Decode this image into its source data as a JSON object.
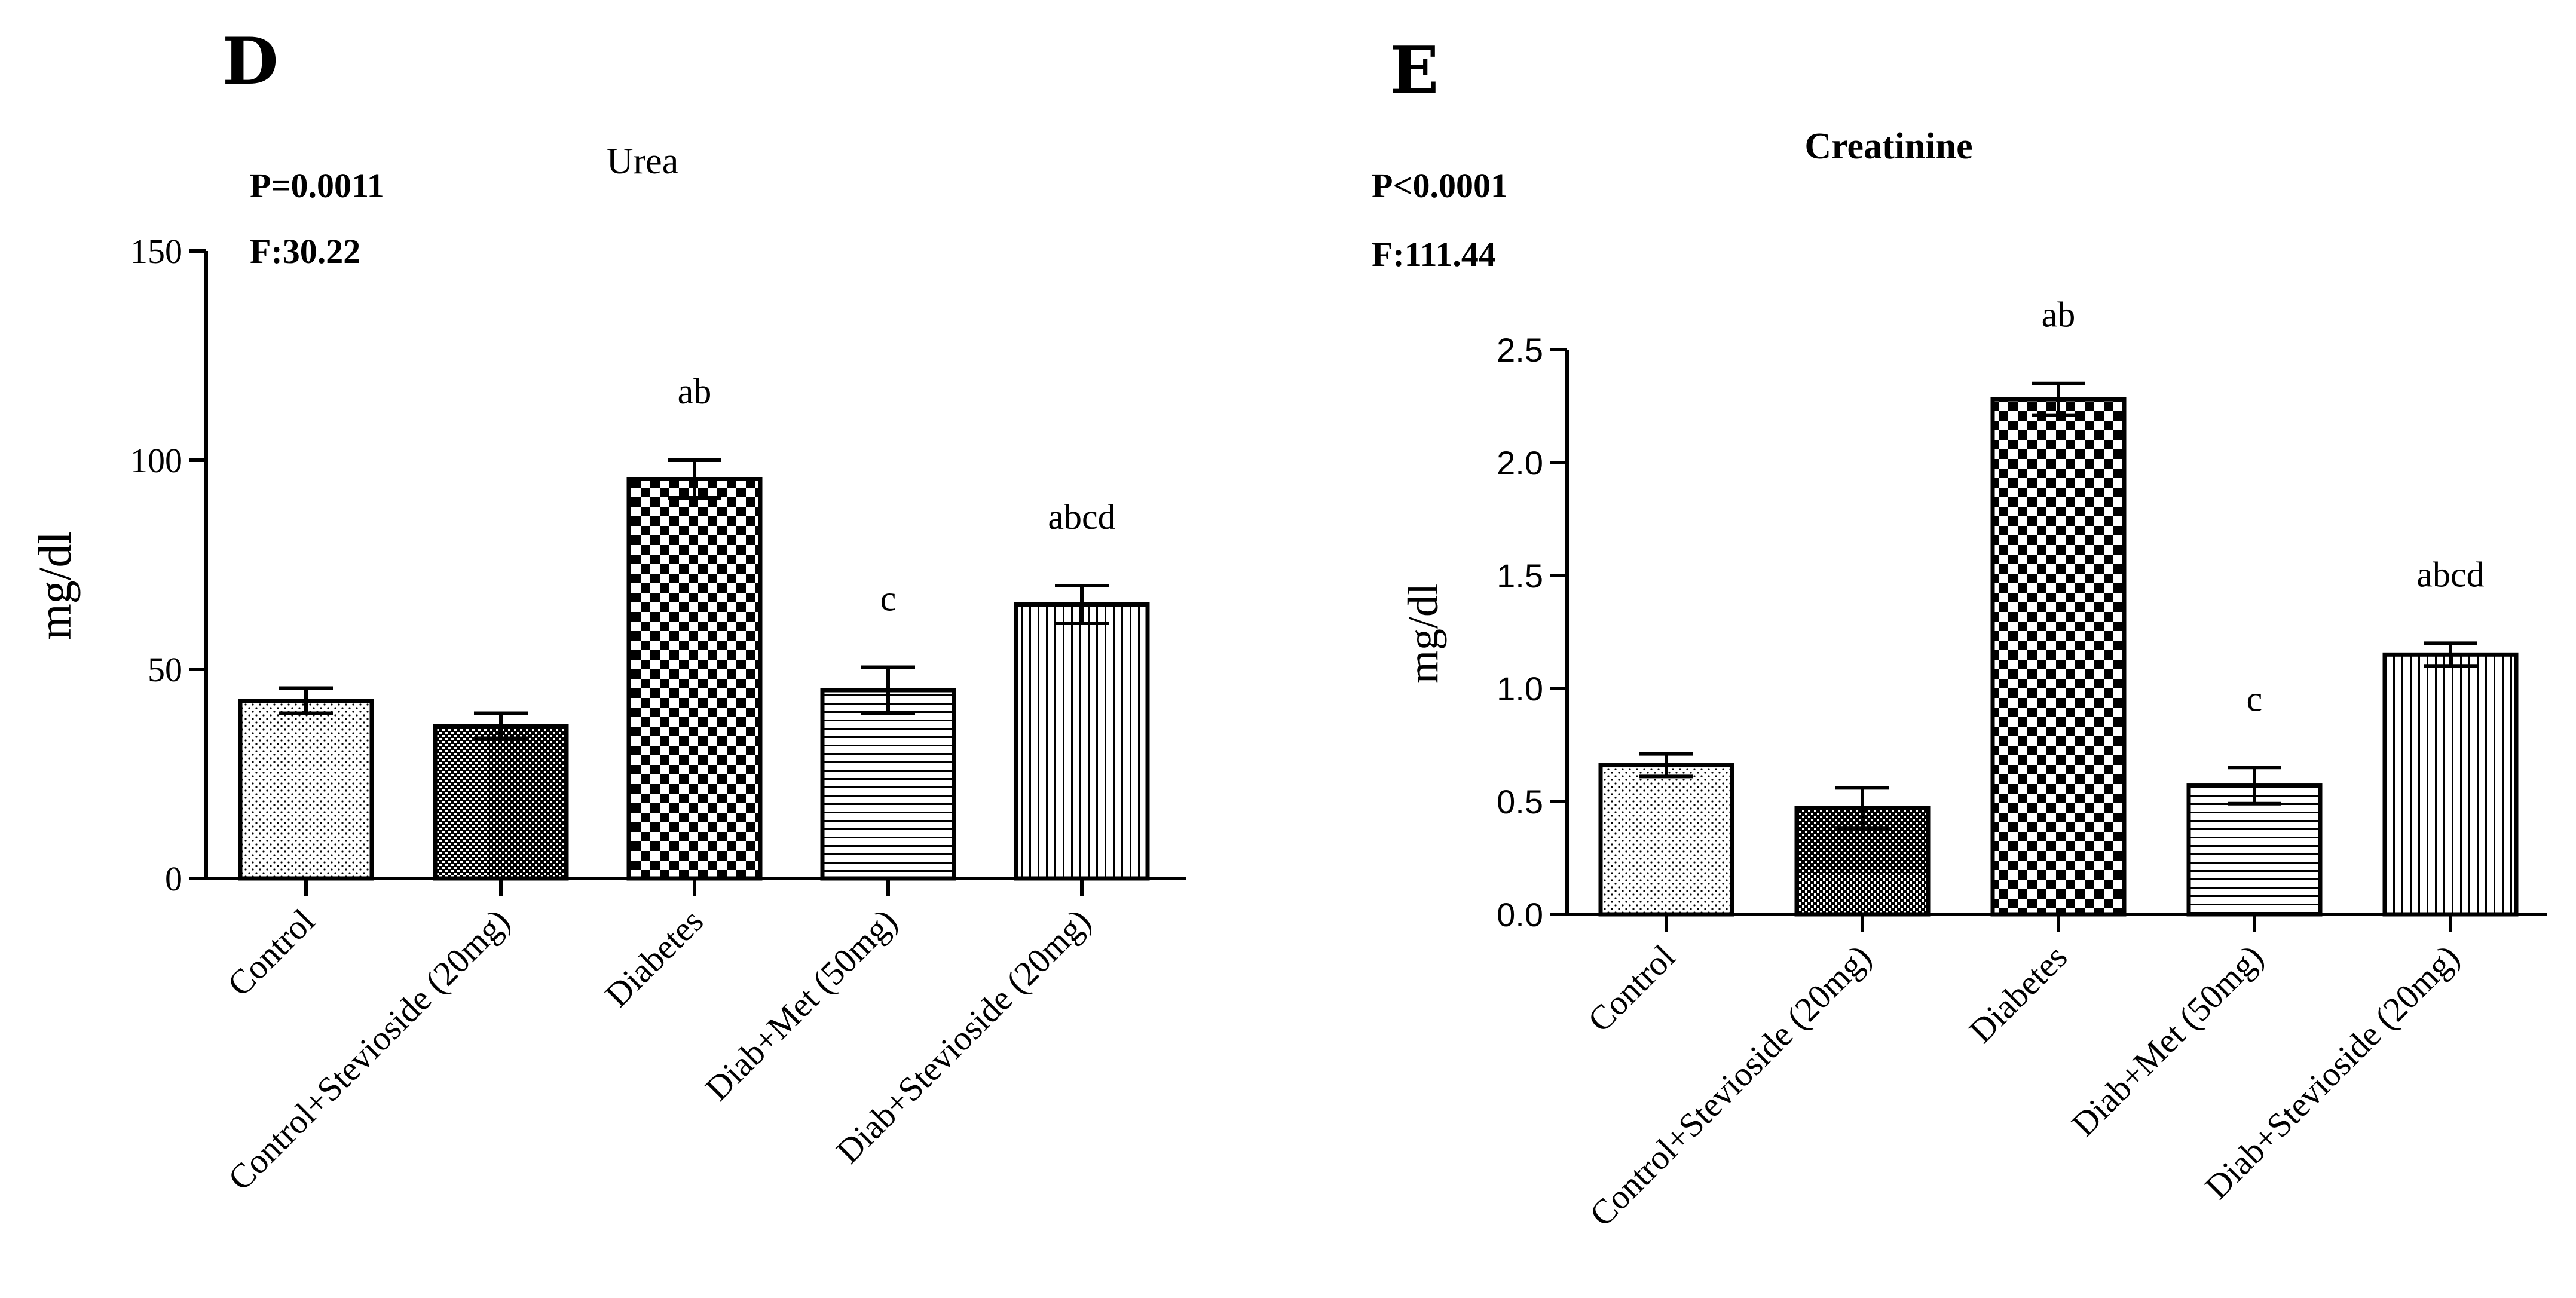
{
  "chart_data": [
    {
      "type": "bar",
      "panel": "D",
      "title": "Urea",
      "stats": [
        "P=0.0011",
        "F:30.22"
      ],
      "xlabel": "",
      "ylabel": "mg/dl",
      "ylim": [
        0,
        150
      ],
      "yticks": [
        0,
        50,
        100,
        150
      ],
      "ytick_labels": [
        "0",
        "50",
        "100",
        "150"
      ],
      "categories": [
        "Control",
        "Control+Stevioside (20mg)",
        "Diabetes",
        "Diab+Met (50mg)",
        "Diab+Stevioside (20mg)"
      ],
      "values": [
        42.5,
        36.5,
        95.5,
        45,
        65.5
      ],
      "errors": [
        3,
        3,
        4.5,
        5.5,
        4.5
      ],
      "annotations": [
        "",
        "",
        "ab",
        "c",
        "abcd"
      ],
      "patterns": [
        "dots",
        "fine-checker",
        "checker",
        "horizontal",
        "vertical"
      ]
    },
    {
      "type": "bar",
      "panel": "E",
      "title": "Creatinine",
      "stats": [
        "P<0.0001",
        "F:111.44"
      ],
      "xlabel": "",
      "ylabel": "mg/dl",
      "ylim": [
        0,
        2.5
      ],
      "yticks": [
        0,
        0.5,
        1.0,
        1.5,
        2.0,
        2.5
      ],
      "ytick_labels": [
        "0.0",
        "0.5",
        "1.0",
        "1.5",
        "2.0",
        "2.5"
      ],
      "categories": [
        "Control",
        "Control+Stevioside (20mg)",
        "Diabetes",
        "Diab+Met (50mg)",
        "Diab+Stevioside (20mg)"
      ],
      "values": [
        0.66,
        0.47,
        2.28,
        0.57,
        1.15
      ],
      "errors": [
        0.05,
        0.09,
        0.07,
        0.08,
        0.05
      ],
      "annotations": [
        "",
        "",
        "ab",
        "c",
        "abcd"
      ],
      "patterns": [
        "dots",
        "fine-checker",
        "checker",
        "horizontal",
        "vertical"
      ]
    }
  ]
}
